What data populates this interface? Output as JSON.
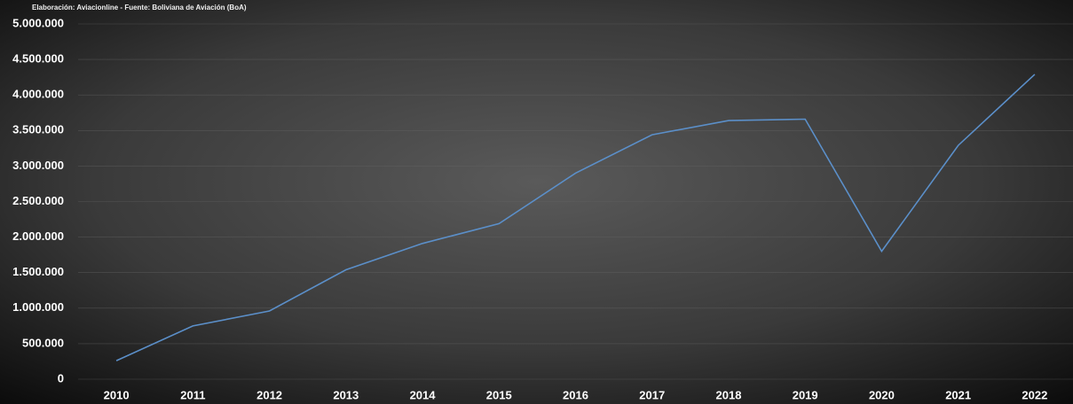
{
  "chart_data": {
    "type": "line",
    "subtitle": "Elaboración: Aviacionline -  Fuente: Boliviana de Aviación (BoA)",
    "categories": [
      "2010",
      "2011",
      "2012",
      "2013",
      "2014",
      "2015",
      "2016",
      "2017",
      "2018",
      "2019",
      "2020",
      "2021",
      "2022"
    ],
    "series": [
      {
        "color": "#5b8fc9",
        "values": [
          260000,
          750000,
          960000,
          1540000,
          1910000,
          2190000,
          2900000,
          3440000,
          3640000,
          3660000,
          1800000,
          3290000,
          4290000
        ]
      }
    ],
    "ylim": [
      0,
      5000000
    ],
    "yticks": [
      0,
      {
        "value": 500000,
        "label": "500.000"
      },
      {
        "value": 1000000,
        "label": "1.000.000"
      },
      {
        "value": 1500000,
        "label": "1.500.000"
      },
      {
        "value": 2000000,
        "label": "2.000.000"
      },
      {
        "value": 2500000,
        "label": "2.500.000"
      },
      {
        "value": 3000000,
        "label": "3.000.000"
      },
      {
        "value": 3500000,
        "label": "3.500.000"
      },
      {
        "value": 4000000,
        "label": "4.000.000"
      },
      {
        "value": 4500000,
        "label": "4.500.000"
      },
      {
        "value": 5000000,
        "label": "5.000.000"
      }
    ],
    "grid": true
  }
}
